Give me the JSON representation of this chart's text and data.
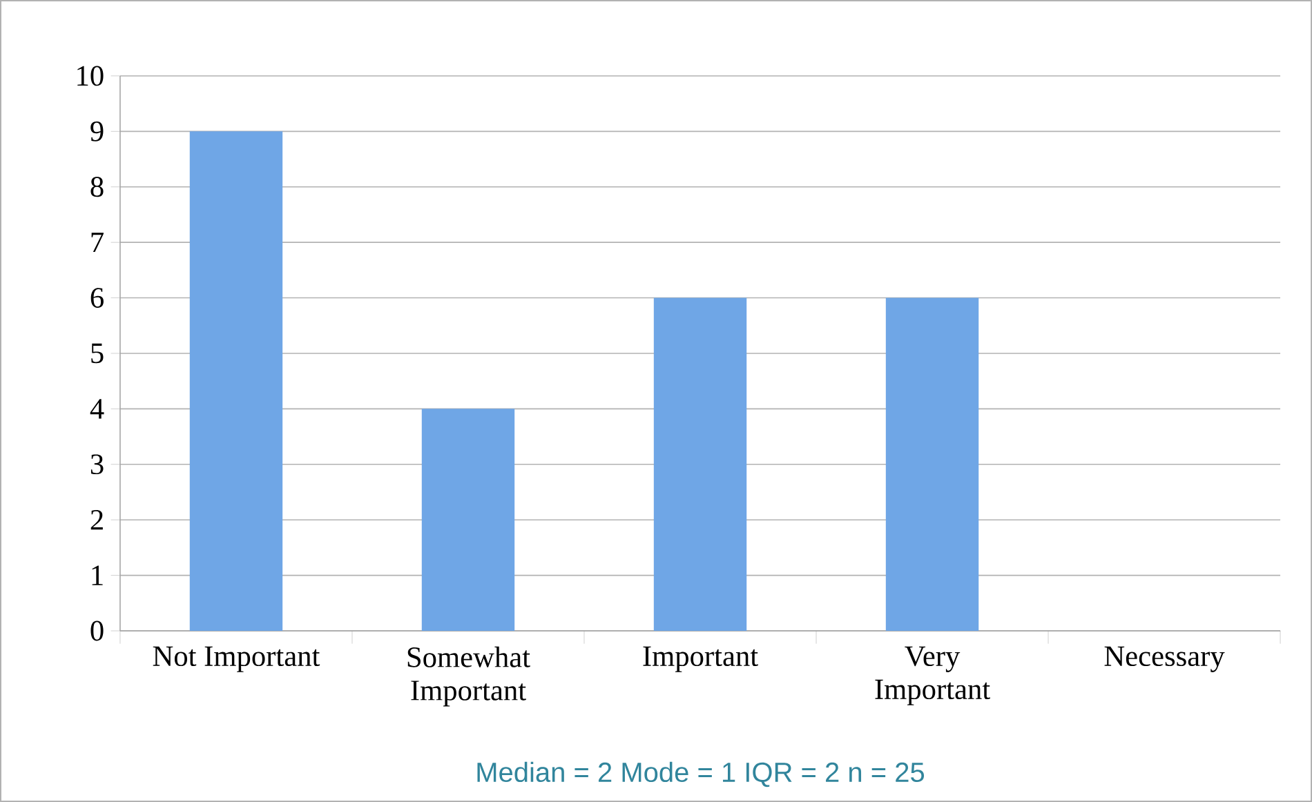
{
  "chart_data": {
    "type": "bar",
    "categories": [
      "Not Important",
      "Somewhat Important",
      "Important",
      "Very Important",
      "Necessary"
    ],
    "values": [
      9,
      4,
      6,
      6,
      0
    ],
    "color": "#6fa6e6",
    "ylim": [
      0,
      10
    ],
    "yticks": [
      0,
      1,
      2,
      3,
      4,
      5,
      6,
      7,
      8,
      9,
      10
    ],
    "grid": "y",
    "annotations": [
      "Median = 2  Mode = 1  IQR = 2  n = 25"
    ]
  }
}
